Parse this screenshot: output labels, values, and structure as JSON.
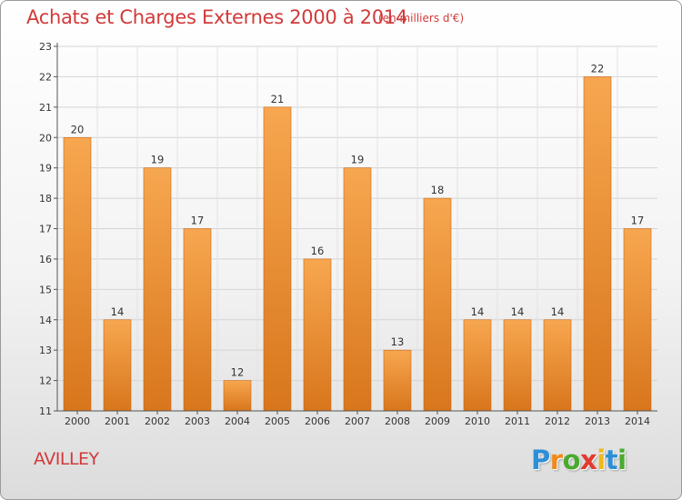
{
  "header": {
    "title": "Achats et Charges Externes 2000 à 2014",
    "subtitle": "(en milliers d'€)"
  },
  "footer": {
    "city": "AVILLEY",
    "logo": {
      "letters": [
        "P",
        "r",
        "o",
        "x",
        "i",
        "t",
        "i"
      ],
      "colors": [
        "#2e8fd6",
        "#f08a1c",
        "#4aaa2e",
        "#e23a2e",
        "#f0b81c",
        "#2e8fd6",
        "#4aaa2e"
      ]
    }
  },
  "colors": {
    "bar_top": "#f7a750",
    "bar_bottom": "#d8761c",
    "title": "#d23a3a"
  },
  "chart_data": {
    "type": "bar",
    "categories": [
      "2000",
      "2001",
      "2002",
      "2003",
      "2004",
      "2005",
      "2006",
      "2007",
      "2008",
      "2009",
      "2010",
      "2011",
      "2012",
      "2013",
      "2014"
    ],
    "values": [
      20,
      14,
      19,
      17,
      12,
      21,
      16,
      19,
      13,
      18,
      14,
      14,
      14,
      22,
      17
    ],
    "ylim": [
      11,
      23
    ],
    "yticks": [
      11,
      12,
      13,
      14,
      15,
      16,
      17,
      18,
      19,
      20,
      21,
      22,
      23
    ],
    "grid": true,
    "legend": "none"
  }
}
